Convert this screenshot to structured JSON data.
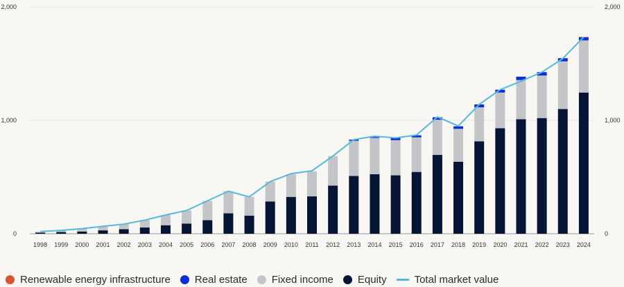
{
  "chart_data": {
    "type": "bar",
    "stacked": true,
    "categories": [
      "1998",
      "1999",
      "2000",
      "2001",
      "2002",
      "2003",
      "2004",
      "2005",
      "2006",
      "2007",
      "2008",
      "2009",
      "2010",
      "2011",
      "2012",
      "2013",
      "2014",
      "2015",
      "2016",
      "2017",
      "2018",
      "2019",
      "2020",
      "2021",
      "2022",
      "2023",
      "2024"
    ],
    "series": [
      {
        "name": "Equity",
        "color": "#061536",
        "values": [
          10,
          15,
          20,
          30,
          40,
          55,
          75,
          90,
          120,
          180,
          160,
          285,
          325,
          330,
          425,
          510,
          525,
          515,
          545,
          695,
          635,
          815,
          930,
          1010,
          1020,
          1100,
          1245
        ]
      },
      {
        "name": "Fixed income",
        "color": "#c3c5c8",
        "values": [
          8,
          12,
          25,
          35,
          45,
          65,
          90,
          115,
          170,
          195,
          165,
          175,
          200,
          220,
          260,
          310,
          320,
          310,
          305,
          310,
          290,
          300,
          315,
          345,
          375,
          420,
          460
        ]
      },
      {
        "name": "Real estate",
        "color": "#0a2fd9",
        "values": [
          0,
          0,
          0,
          0,
          0,
          0,
          0,
          0,
          0,
          0,
          0,
          0,
          0,
          0,
          0,
          10,
          15,
          20,
          18,
          22,
          22,
          25,
          25,
          30,
          30,
          28,
          28
        ]
      },
      {
        "name": "Renewable energy infrastructure",
        "color": "#d8532e",
        "values": [
          0,
          0,
          0,
          0,
          0,
          0,
          0,
          0,
          0,
          0,
          0,
          0,
          0,
          0,
          0,
          0,
          0,
          0,
          0,
          0,
          0,
          0,
          0,
          0,
          0,
          0,
          2
        ]
      }
    ],
    "line": {
      "name": "Total market value",
      "color": "#55b9de",
      "values": [
        20,
        30,
        45,
        65,
        85,
        120,
        165,
        205,
        290,
        375,
        325,
        460,
        530,
        555,
        685,
        830,
        860,
        845,
        870,
        1030,
        950,
        1140,
        1270,
        1345,
        1425,
        1545,
        1735
      ]
    },
    "ylim": [
      0,
      2000
    ],
    "y_ticks": [
      0,
      1000,
      2000
    ],
    "y_tick_labels": [
      "0",
      "1,000",
      "2,000"
    ],
    "y2_tick_labels": [
      "0",
      "1,000",
      "2,000"
    ],
    "grid": true,
    "legend_position": "bottom-left",
    "legend_order": [
      "Renewable energy infrastructure",
      "Real estate",
      "Fixed income",
      "Equity",
      "Total market value"
    ]
  }
}
